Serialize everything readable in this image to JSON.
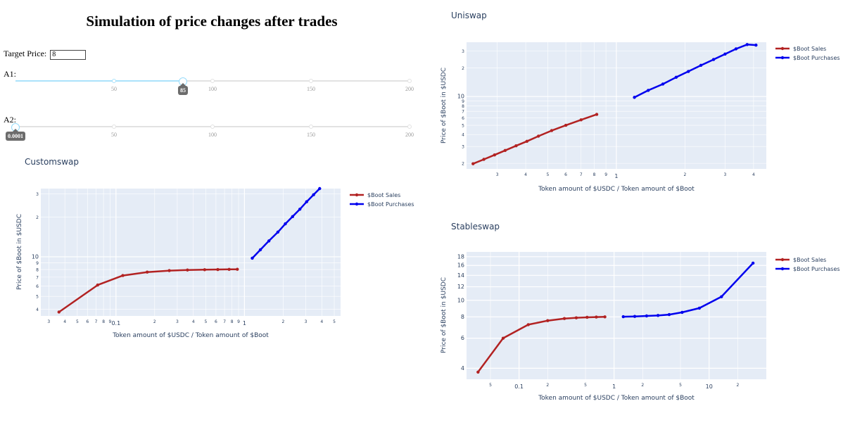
{
  "page": {
    "title": "Simulation of price changes after trades",
    "target_label": "Target Price:",
    "target_value": "8"
  },
  "sliders": [
    {
      "label": "A1:",
      "min": 0,
      "max": 200,
      "marks": [
        "50",
        "100",
        "150",
        "200"
      ],
      "mark_values": [
        50,
        100,
        150,
        200
      ],
      "value": 85,
      "value_label": "85"
    },
    {
      "label": "A2:",
      "min": 0,
      "max": 200,
      "marks": [
        "50",
        "100",
        "150",
        "200"
      ],
      "mark_values": [
        50,
        100,
        150,
        200
      ],
      "value": 0.0001,
      "value_label": "0.0001"
    }
  ],
  "colors": {
    "sales": "#b22222",
    "purchases": "#0000ee",
    "plot_bg": "#e5ecf6",
    "grid": "#ffffff",
    "text": "#2a3f5f"
  },
  "chart_data": [
    {
      "id": "customswap",
      "type": "line",
      "title": "Customswap",
      "xlabel": "Token amount of $USDC / Token amount of $Boot",
      "ylabel": "Price of $Boot in $USDC",
      "x_scale": "log",
      "y_scale": "log",
      "xlim": [
        0.026,
        5.6
      ],
      "ylim": [
        3.55,
        33
      ],
      "grid": true,
      "legend_position": "top-right",
      "x_ticks": [
        {
          "v": 0.03,
          "t": "3",
          "major": false
        },
        {
          "v": 0.04,
          "t": "4",
          "major": false
        },
        {
          "v": 0.05,
          "t": "5",
          "major": false
        },
        {
          "v": 0.06,
          "t": "6",
          "major": false
        },
        {
          "v": 0.07,
          "t": "7",
          "major": false
        },
        {
          "v": 0.08,
          "t": "8",
          "major": false
        },
        {
          "v": 0.09,
          "t": "9",
          "major": false
        },
        {
          "v": 0.1,
          "t": "0.1",
          "major": true
        },
        {
          "v": 0.2,
          "t": "2",
          "major": false
        },
        {
          "v": 0.3,
          "t": "3",
          "major": false
        },
        {
          "v": 0.4,
          "t": "4",
          "major": false
        },
        {
          "v": 0.5,
          "t": "5",
          "major": false
        },
        {
          "v": 0.6,
          "t": "6",
          "major": false
        },
        {
          "v": 0.7,
          "t": "7",
          "major": false
        },
        {
          "v": 0.8,
          "t": "8",
          "major": false
        },
        {
          "v": 0.9,
          "t": "9",
          "major": false
        },
        {
          "v": 1,
          "t": "1",
          "major": true
        },
        {
          "v": 2,
          "t": "2",
          "major": false
        },
        {
          "v": 3,
          "t": "3",
          "major": false
        },
        {
          "v": 4,
          "t": "4",
          "major": false
        },
        {
          "v": 5,
          "t": "5",
          "major": false
        }
      ],
      "y_ticks": [
        {
          "v": 4,
          "t": "4",
          "major": false
        },
        {
          "v": 5,
          "t": "5",
          "major": false
        },
        {
          "v": 6,
          "t": "6",
          "major": false
        },
        {
          "v": 7,
          "t": "7",
          "major": false
        },
        {
          "v": 8,
          "t": "8",
          "major": false
        },
        {
          "v": 9,
          "t": "9",
          "major": false
        },
        {
          "v": 10,
          "t": "10",
          "major": true
        },
        {
          "v": 20,
          "t": "2",
          "major": false
        },
        {
          "v": 30,
          "t": "3",
          "major": false
        }
      ],
      "series": [
        {
          "name": "$Boot Sales",
          "color": "#b22222",
          "x": [
            0.036,
            0.072,
            0.113,
            0.175,
            0.26,
            0.36,
            0.49,
            0.62,
            0.76,
            0.88
          ],
          "y": [
            3.8,
            6.1,
            7.2,
            7.65,
            7.85,
            7.93,
            7.97,
            8.0,
            8.02,
            8.03
          ]
        },
        {
          "name": "$Boot Purchases",
          "color": "#0000ee",
          "x": [
            1.15,
            1.33,
            1.55,
            1.82,
            2.08,
            2.37,
            2.7,
            3.05,
            3.45,
            3.85
          ],
          "y": [
            9.75,
            11.3,
            13.2,
            15.4,
            17.8,
            20.2,
            23.0,
            26.2,
            29.6,
            33.0
          ]
        }
      ]
    },
    {
      "id": "uniswap",
      "type": "line",
      "title": "Uniswap",
      "xlabel": "Token amount of $USDC / Token amount of $Boot",
      "ylabel": "Price of $Boot in $USDC",
      "x_scale": "log",
      "y_scale": "log",
      "xlim": [
        0.22,
        4.55
      ],
      "ylim": [
        1.75,
        37
      ],
      "grid": true,
      "legend_position": "top-right",
      "x_ticks": [
        {
          "v": 0.3,
          "t": "3",
          "major": false
        },
        {
          "v": 0.4,
          "t": "4",
          "major": false
        },
        {
          "v": 0.5,
          "t": "5",
          "major": false
        },
        {
          "v": 0.6,
          "t": "6",
          "major": false
        },
        {
          "v": 0.7,
          "t": "7",
          "major": false
        },
        {
          "v": 0.8,
          "t": "8",
          "major": false
        },
        {
          "v": 0.9,
          "t": "9",
          "major": false
        },
        {
          "v": 1,
          "t": "1",
          "major": true
        },
        {
          "v": 2,
          "t": "2",
          "major": false
        },
        {
          "v": 3,
          "t": "3",
          "major": false
        },
        {
          "v": 4,
          "t": "4",
          "major": false
        }
      ],
      "y_ticks": [
        {
          "v": 2,
          "t": "2",
          "major": false
        },
        {
          "v": 3,
          "t": "3",
          "major": false
        },
        {
          "v": 4,
          "t": "4",
          "major": false
        },
        {
          "v": 5,
          "t": "5",
          "major": false
        },
        {
          "v": 6,
          "t": "6",
          "major": false
        },
        {
          "v": 7,
          "t": "7",
          "major": false
        },
        {
          "v": 8,
          "t": "8",
          "major": false
        },
        {
          "v": 9,
          "t": "9",
          "major": false
        },
        {
          "v": 10,
          "t": "10",
          "major": true
        },
        {
          "v": 20,
          "t": "2",
          "major": false
        },
        {
          "v": 30,
          "t": "3",
          "major": false
        }
      ],
      "series": [
        {
          "name": "$Boot Sales",
          "color": "#b22222",
          "x": [
            0.235,
            0.262,
            0.292,
            0.325,
            0.363,
            0.405,
            0.455,
            0.52,
            0.6,
            0.7,
            0.82
          ],
          "y": [
            1.98,
            2.2,
            2.45,
            2.73,
            3.05,
            3.4,
            3.85,
            4.4,
            5.0,
            5.7,
            6.5
          ]
        },
        {
          "name": "$Boot Purchases",
          "color": "#0000ee",
          "x": [
            1.2,
            1.38,
            1.6,
            1.83,
            2.07,
            2.35,
            2.67,
            3.0,
            3.35,
            3.75,
            4.1
          ],
          "y": [
            9.8,
            11.6,
            13.5,
            15.9,
            18.3,
            21.2,
            24.4,
            27.8,
            31.5,
            35.0,
            34.5
          ]
        }
      ]
    },
    {
      "id": "stableswap",
      "type": "line",
      "title": "Stableswap",
      "xlabel": "Token amount of $USDC / Token amount of $Boot",
      "ylabel": "Price of $Boot in $USDC",
      "x_scale": "log",
      "y_scale": "log",
      "xlim": [
        0.028,
        40
      ],
      "ylim": [
        3.45,
        19.2
      ],
      "grid": true,
      "legend_position": "top-right",
      "x_ticks": [
        {
          "v": 0.05,
          "t": "5",
          "major": false
        },
        {
          "v": 0.1,
          "t": "0.1",
          "major": true
        },
        {
          "v": 0.2,
          "t": "2",
          "major": false
        },
        {
          "v": 0.5,
          "t": "5",
          "major": false
        },
        {
          "v": 1,
          "t": "1",
          "major": true
        },
        {
          "v": 2,
          "t": "2",
          "major": false
        },
        {
          "v": 5,
          "t": "5",
          "major": false
        },
        {
          "v": 10,
          "t": "10",
          "major": true
        },
        {
          "v": 20,
          "t": "2",
          "major": false
        }
      ],
      "y_ticks": [
        {
          "v": 4,
          "t": "4",
          "major": true
        },
        {
          "v": 6,
          "t": "6",
          "major": true
        },
        {
          "v": 8,
          "t": "8",
          "major": true
        },
        {
          "v": 10,
          "t": "10",
          "major": true
        },
        {
          "v": 12,
          "t": "12",
          "major": true
        },
        {
          "v": 14,
          "t": "14",
          "major": true
        },
        {
          "v": 16,
          "t": "16",
          "major": true
        },
        {
          "v": 18,
          "t": "18",
          "major": true
        }
      ],
      "series": [
        {
          "name": "$Boot Sales",
          "color": "#b22222",
          "x": [
            0.037,
            0.068,
            0.125,
            0.2,
            0.3,
            0.4,
            0.52,
            0.65,
            0.8
          ],
          "y": [
            3.8,
            6.0,
            7.2,
            7.6,
            7.82,
            7.9,
            7.95,
            7.98,
            8.0
          ]
        },
        {
          "name": "$Boot Purchases",
          "color": "#0000ee",
          "x": [
            1.25,
            1.65,
            2.2,
            2.9,
            3.8,
            5.2,
            7.9,
            13.5,
            29
          ],
          "y": [
            8.02,
            8.05,
            8.1,
            8.15,
            8.25,
            8.5,
            9.0,
            10.5,
            16.5
          ]
        }
      ]
    }
  ]
}
